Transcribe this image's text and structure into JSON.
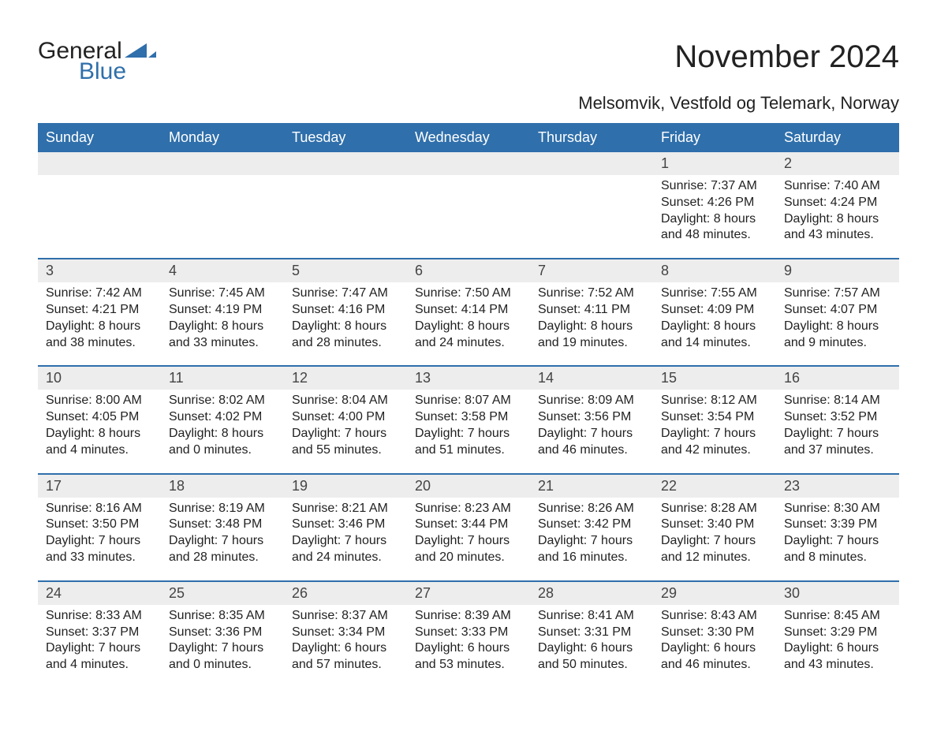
{
  "logo": {
    "word1": "General",
    "word2": "Blue",
    "word1_color": "#222222",
    "word2_color": "#2f6fab",
    "triangle_color": "#2f6fab"
  },
  "title": "November 2024",
  "location": "Melsomvik, Vestfold og Telemark, Norway",
  "colors": {
    "header_bg": "#2f6fab",
    "header_text": "#ffffff",
    "daynum_bg": "#ededed",
    "week_separator": "#2f6fab",
    "text": "#222222",
    "background": "#ffffff"
  },
  "font_sizes": {
    "title_pt": 30,
    "location_pt": 17,
    "weekday_pt": 14,
    "daynum_pt": 14,
    "body_pt": 12
  },
  "weekdays": [
    "Sunday",
    "Monday",
    "Tuesday",
    "Wednesday",
    "Thursday",
    "Friday",
    "Saturday"
  ],
  "weeks": [
    [
      {
        "day": "",
        "sunrise": "",
        "sunset": "",
        "daylight1": "",
        "daylight2": ""
      },
      {
        "day": "",
        "sunrise": "",
        "sunset": "",
        "daylight1": "",
        "daylight2": ""
      },
      {
        "day": "",
        "sunrise": "",
        "sunset": "",
        "daylight1": "",
        "daylight2": ""
      },
      {
        "day": "",
        "sunrise": "",
        "sunset": "",
        "daylight1": "",
        "daylight2": ""
      },
      {
        "day": "",
        "sunrise": "",
        "sunset": "",
        "daylight1": "",
        "daylight2": ""
      },
      {
        "day": "1",
        "sunrise": "Sunrise: 7:37 AM",
        "sunset": "Sunset: 4:26 PM",
        "daylight1": "Daylight: 8 hours",
        "daylight2": "and 48 minutes."
      },
      {
        "day": "2",
        "sunrise": "Sunrise: 7:40 AM",
        "sunset": "Sunset: 4:24 PM",
        "daylight1": "Daylight: 8 hours",
        "daylight2": "and 43 minutes."
      }
    ],
    [
      {
        "day": "3",
        "sunrise": "Sunrise: 7:42 AM",
        "sunset": "Sunset: 4:21 PM",
        "daylight1": "Daylight: 8 hours",
        "daylight2": "and 38 minutes."
      },
      {
        "day": "4",
        "sunrise": "Sunrise: 7:45 AM",
        "sunset": "Sunset: 4:19 PM",
        "daylight1": "Daylight: 8 hours",
        "daylight2": "and 33 minutes."
      },
      {
        "day": "5",
        "sunrise": "Sunrise: 7:47 AM",
        "sunset": "Sunset: 4:16 PM",
        "daylight1": "Daylight: 8 hours",
        "daylight2": "and 28 minutes."
      },
      {
        "day": "6",
        "sunrise": "Sunrise: 7:50 AM",
        "sunset": "Sunset: 4:14 PM",
        "daylight1": "Daylight: 8 hours",
        "daylight2": "and 24 minutes."
      },
      {
        "day": "7",
        "sunrise": "Sunrise: 7:52 AM",
        "sunset": "Sunset: 4:11 PM",
        "daylight1": "Daylight: 8 hours",
        "daylight2": "and 19 minutes."
      },
      {
        "day": "8",
        "sunrise": "Sunrise: 7:55 AM",
        "sunset": "Sunset: 4:09 PM",
        "daylight1": "Daylight: 8 hours",
        "daylight2": "and 14 minutes."
      },
      {
        "day": "9",
        "sunrise": "Sunrise: 7:57 AM",
        "sunset": "Sunset: 4:07 PM",
        "daylight1": "Daylight: 8 hours",
        "daylight2": "and 9 minutes."
      }
    ],
    [
      {
        "day": "10",
        "sunrise": "Sunrise: 8:00 AM",
        "sunset": "Sunset: 4:05 PM",
        "daylight1": "Daylight: 8 hours",
        "daylight2": "and 4 minutes."
      },
      {
        "day": "11",
        "sunrise": "Sunrise: 8:02 AM",
        "sunset": "Sunset: 4:02 PM",
        "daylight1": "Daylight: 8 hours",
        "daylight2": "and 0 minutes."
      },
      {
        "day": "12",
        "sunrise": "Sunrise: 8:04 AM",
        "sunset": "Sunset: 4:00 PM",
        "daylight1": "Daylight: 7 hours",
        "daylight2": "and 55 minutes."
      },
      {
        "day": "13",
        "sunrise": "Sunrise: 8:07 AM",
        "sunset": "Sunset: 3:58 PM",
        "daylight1": "Daylight: 7 hours",
        "daylight2": "and 51 minutes."
      },
      {
        "day": "14",
        "sunrise": "Sunrise: 8:09 AM",
        "sunset": "Sunset: 3:56 PM",
        "daylight1": "Daylight: 7 hours",
        "daylight2": "and 46 minutes."
      },
      {
        "day": "15",
        "sunrise": "Sunrise: 8:12 AM",
        "sunset": "Sunset: 3:54 PM",
        "daylight1": "Daylight: 7 hours",
        "daylight2": "and 42 minutes."
      },
      {
        "day": "16",
        "sunrise": "Sunrise: 8:14 AM",
        "sunset": "Sunset: 3:52 PM",
        "daylight1": "Daylight: 7 hours",
        "daylight2": "and 37 minutes."
      }
    ],
    [
      {
        "day": "17",
        "sunrise": "Sunrise: 8:16 AM",
        "sunset": "Sunset: 3:50 PM",
        "daylight1": "Daylight: 7 hours",
        "daylight2": "and 33 minutes."
      },
      {
        "day": "18",
        "sunrise": "Sunrise: 8:19 AM",
        "sunset": "Sunset: 3:48 PM",
        "daylight1": "Daylight: 7 hours",
        "daylight2": "and 28 minutes."
      },
      {
        "day": "19",
        "sunrise": "Sunrise: 8:21 AM",
        "sunset": "Sunset: 3:46 PM",
        "daylight1": "Daylight: 7 hours",
        "daylight2": "and 24 minutes."
      },
      {
        "day": "20",
        "sunrise": "Sunrise: 8:23 AM",
        "sunset": "Sunset: 3:44 PM",
        "daylight1": "Daylight: 7 hours",
        "daylight2": "and 20 minutes."
      },
      {
        "day": "21",
        "sunrise": "Sunrise: 8:26 AM",
        "sunset": "Sunset: 3:42 PM",
        "daylight1": "Daylight: 7 hours",
        "daylight2": "and 16 minutes."
      },
      {
        "day": "22",
        "sunrise": "Sunrise: 8:28 AM",
        "sunset": "Sunset: 3:40 PM",
        "daylight1": "Daylight: 7 hours",
        "daylight2": "and 12 minutes."
      },
      {
        "day": "23",
        "sunrise": "Sunrise: 8:30 AM",
        "sunset": "Sunset: 3:39 PM",
        "daylight1": "Daylight: 7 hours",
        "daylight2": "and 8 minutes."
      }
    ],
    [
      {
        "day": "24",
        "sunrise": "Sunrise: 8:33 AM",
        "sunset": "Sunset: 3:37 PM",
        "daylight1": "Daylight: 7 hours",
        "daylight2": "and 4 minutes."
      },
      {
        "day": "25",
        "sunrise": "Sunrise: 8:35 AM",
        "sunset": "Sunset: 3:36 PM",
        "daylight1": "Daylight: 7 hours",
        "daylight2": "and 0 minutes."
      },
      {
        "day": "26",
        "sunrise": "Sunrise: 8:37 AM",
        "sunset": "Sunset: 3:34 PM",
        "daylight1": "Daylight: 6 hours",
        "daylight2": "and 57 minutes."
      },
      {
        "day": "27",
        "sunrise": "Sunrise: 8:39 AM",
        "sunset": "Sunset: 3:33 PM",
        "daylight1": "Daylight: 6 hours",
        "daylight2": "and 53 minutes."
      },
      {
        "day": "28",
        "sunrise": "Sunrise: 8:41 AM",
        "sunset": "Sunset: 3:31 PM",
        "daylight1": "Daylight: 6 hours",
        "daylight2": "and 50 minutes."
      },
      {
        "day": "29",
        "sunrise": "Sunrise: 8:43 AM",
        "sunset": "Sunset: 3:30 PM",
        "daylight1": "Daylight: 6 hours",
        "daylight2": "and 46 minutes."
      },
      {
        "day": "30",
        "sunrise": "Sunrise: 8:45 AM",
        "sunset": "Sunset: 3:29 PM",
        "daylight1": "Daylight: 6 hours",
        "daylight2": "and 43 minutes."
      }
    ]
  ]
}
